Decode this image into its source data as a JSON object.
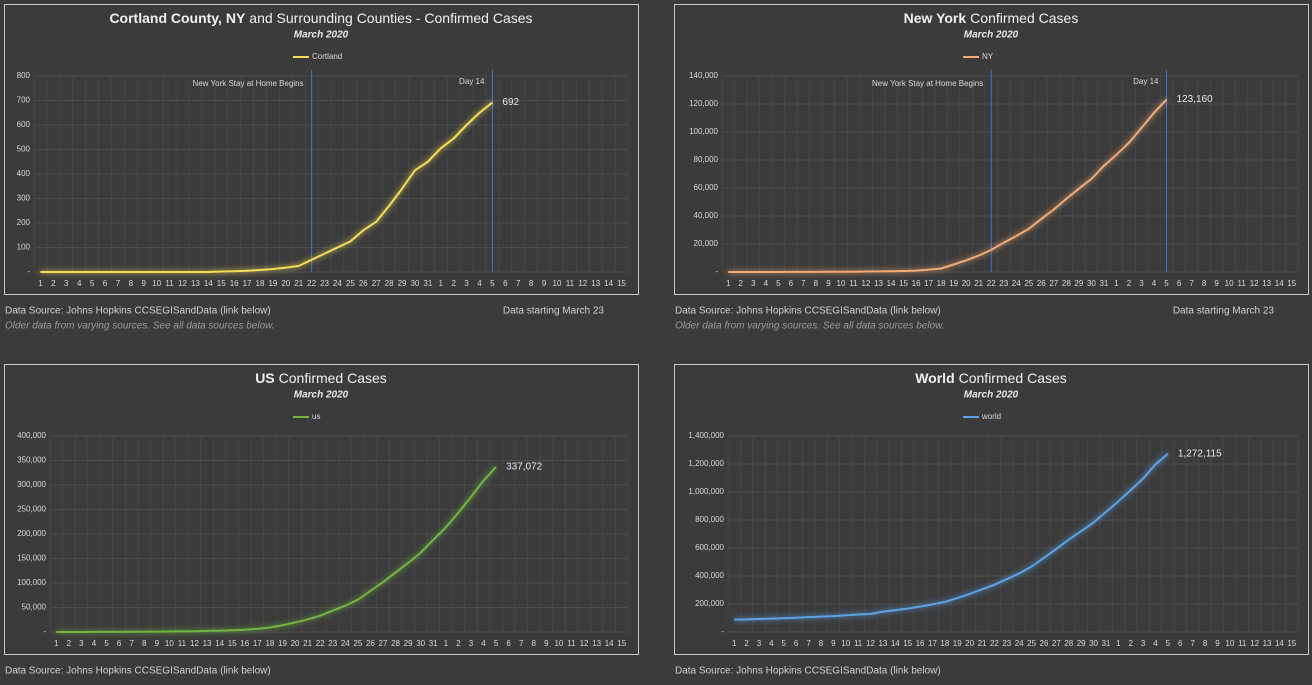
{
  "chart_data": [
    {
      "type": "line",
      "title": [
        "Cortland County, NY",
        "and Surrounding Counties - Confirmed Cases"
      ],
      "subtitle": "March 2020",
      "categories": [
        1,
        2,
        3,
        4,
        5,
        6,
        7,
        8,
        9,
        10,
        11,
        12,
        13,
        14,
        15,
        16,
        17,
        18,
        19,
        20,
        21,
        22,
        23,
        24,
        25,
        26,
        27,
        28,
        29,
        30,
        31,
        1,
        2,
        3,
        4,
        5,
        6,
        7,
        8,
        9,
        10,
        11,
        12,
        13,
        14,
        15
      ],
      "series": [
        {
          "name": "Cortland",
          "color": "#f2dc5a",
          "values": [
            0,
            0,
            0,
            0,
            0,
            0,
            0,
            0,
            0,
            0,
            0,
            0,
            0,
            0,
            2,
            3,
            5,
            8,
            12,
            18,
            25,
            50,
            75,
            100,
            125,
            170,
            205,
            270,
            340,
            415,
            450,
            505,
            545,
            600,
            650,
            692,
            null,
            null,
            null,
            null,
            null,
            null,
            null,
            null,
            null,
            null
          ],
          "value_labels": [
            null,
            null,
            null,
            null,
            null,
            null,
            null,
            null,
            null,
            null,
            null,
            null,
            null,
            null,
            null,
            null,
            null,
            null,
            null,
            null,
            null,
            null,
            null,
            null,
            null,
            null,
            null,
            null,
            null,
            null,
            null,
            null,
            null,
            null,
            null,
            "692",
            null,
            null,
            null,
            null,
            null,
            null,
            null,
            null,
            null,
            null
          ]
        }
      ],
      "ylim": [
        0,
        800
      ],
      "yticks": [
        {
          "value": 0,
          "label": "-"
        },
        100,
        200,
        300,
        400,
        500,
        600,
        700,
        800
      ],
      "grid": true,
      "annotations": [
        {
          "text": "New York Stay at Home Begins",
          "at": 21
        },
        {
          "text": "Day 14",
          "at": 35
        }
      ],
      "source": "Data Source:  Johns Hopkins CCSEGISandData (link below)",
      "source_note": "Older data from varying sources.  See all data sources below.",
      "data_note": "Data starting March 23"
    },
    {
      "type": "line",
      "title": [
        "New York",
        "Confirmed Cases"
      ],
      "subtitle": "March 2020",
      "categories": [
        1,
        2,
        3,
        4,
        5,
        6,
        7,
        8,
        9,
        10,
        11,
        12,
        13,
        14,
        15,
        16,
        17,
        18,
        19,
        20,
        21,
        22,
        23,
        24,
        25,
        26,
        27,
        28,
        29,
        30,
        31,
        1,
        2,
        3,
        4,
        5,
        6,
        7,
        8,
        9,
        10,
        11,
        12,
        13,
        14,
        15
      ],
      "series": [
        {
          "name": "NY",
          "color": "#f0aa78",
          "values": [
            0,
            0,
            10,
            20,
            30,
            50,
            80,
            100,
            140,
            173,
            220,
            328,
            421,
            525,
            732,
            967,
            1706,
            2495,
            5365,
            8310,
            11710,
            15793,
            20884,
            25681,
            30841,
            37877,
            44635,
            52318,
            59513,
            66497,
            75795,
            83712,
            92381,
            102863,
            113704,
            123160,
            null,
            null,
            null,
            null,
            null,
            null,
            null,
            null,
            null,
            null
          ],
          "value_labels": [
            null,
            null,
            null,
            null,
            null,
            null,
            null,
            null,
            null,
            null,
            null,
            null,
            null,
            null,
            null,
            null,
            null,
            null,
            null,
            null,
            null,
            null,
            null,
            null,
            null,
            null,
            null,
            null,
            null,
            null,
            null,
            null,
            null,
            null,
            null,
            "123,160",
            null,
            null,
            null,
            null,
            null,
            null,
            null,
            null,
            null,
            null
          ]
        }
      ],
      "ylim": [
        0,
        140000
      ],
      "yticks": [
        {
          "value": 0,
          "label": "-"
        },
        {
          "value": 20000,
          "label": "20,000"
        },
        {
          "value": 40000,
          "label": "40,000"
        },
        {
          "value": 60000,
          "label": "60,000"
        },
        {
          "value": 80000,
          "label": "80,000"
        },
        {
          "value": 100000,
          "label": "100,000"
        },
        {
          "value": 120000,
          "label": "120,000"
        },
        {
          "value": 140000,
          "label": "140,000"
        }
      ],
      "grid": true,
      "annotations": [
        {
          "text": "New York Stay at Home Begins",
          "at": 21
        },
        {
          "text": "Day 14",
          "at": 35
        }
      ],
      "source": "Data Source:  Johns Hopkins CCSEGISandData (link below)",
      "source_note": "Older data from varying sources.  See all data sources below.",
      "data_note": "Data starting March 23"
    },
    {
      "type": "line",
      "title": [
        "US",
        "Confirmed Cases"
      ],
      "subtitle": "March 2020",
      "categories": [
        1,
        2,
        3,
        4,
        5,
        6,
        7,
        8,
        9,
        10,
        11,
        12,
        13,
        14,
        15,
        16,
        17,
        18,
        19,
        20,
        21,
        22,
        23,
        24,
        25,
        26,
        27,
        28,
        29,
        30,
        31,
        1,
        2,
        3,
        4,
        5,
        6,
        7,
        8,
        9,
        10,
        11,
        12,
        13,
        14,
        15
      ],
      "series": [
        {
          "name": "us",
          "color": "#72b442",
          "values": [
            75,
            100,
            124,
            158,
            221,
            319,
            435,
            541,
            704,
            994,
            1301,
            1630,
            2183,
            2770,
            3613,
            4596,
            6344,
            9197,
            13779,
            19273,
            25600,
            33276,
            43847,
            53740,
            65778,
            83836,
            101657,
            121478,
            140886,
            161807,
            188172,
            213372,
            243453,
            275586,
            308850,
            337072,
            null,
            null,
            null,
            null,
            null,
            null,
            null,
            null,
            null,
            null
          ],
          "value_labels": [
            null,
            null,
            null,
            null,
            null,
            null,
            null,
            null,
            null,
            null,
            null,
            null,
            null,
            null,
            null,
            null,
            null,
            null,
            null,
            null,
            null,
            null,
            null,
            null,
            null,
            null,
            null,
            null,
            null,
            null,
            null,
            null,
            null,
            null,
            null,
            "337,072",
            null,
            null,
            null,
            null,
            null,
            null,
            null,
            null,
            null,
            null
          ]
        }
      ],
      "ylim": [
        0,
        400000
      ],
      "yticks": [
        {
          "value": 0,
          "label": "-"
        },
        {
          "value": 50000,
          "label": "50,000"
        },
        {
          "value": 100000,
          "label": "100,000"
        },
        {
          "value": 150000,
          "label": "150,000"
        },
        {
          "value": 200000,
          "label": "200,000"
        },
        {
          "value": 250000,
          "label": "250,000"
        },
        {
          "value": 300000,
          "label": "300,000"
        },
        {
          "value": 350000,
          "label": "350,000"
        },
        {
          "value": 400000,
          "label": "400,000"
        }
      ],
      "grid": true,
      "source": "Data Source:  Johns Hopkins CCSEGISandData (link below)"
    },
    {
      "type": "line",
      "title": [
        "World",
        "Confirmed Cases"
      ],
      "subtitle": "March 2020",
      "categories": [
        1,
        2,
        3,
        4,
        5,
        6,
        7,
        8,
        9,
        10,
        11,
        12,
        13,
        14,
        15,
        16,
        17,
        18,
        19,
        20,
        21,
        22,
        23,
        24,
        25,
        26,
        27,
        28,
        29,
        30,
        31,
        1,
        2,
        3,
        4,
        5,
        6,
        7,
        8,
        9,
        10,
        11,
        12,
        13,
        14,
        15
      ],
      "series": [
        {
          "name": "world",
          "color": "#5ba3e6",
          "values": [
            88369,
            90306,
            92840,
            95120,
            97886,
            101801,
            105847,
            109821,
            113590,
            118620,
            125875,
            128352,
            145205,
            156101,
            167454,
            181574,
            197102,
            214821,
            242570,
            272208,
            304507,
            336953,
            378235,
            418045,
            467653,
            529591,
            593291,
            660706,
            720117,
            782365,
            857487,
            932605,
            1013157,
            1095917,
            1197405,
            1272115,
            null,
            null,
            null,
            null,
            null,
            null,
            null,
            null,
            null,
            null
          ],
          "value_labels": [
            null,
            null,
            null,
            null,
            null,
            null,
            null,
            null,
            null,
            null,
            null,
            null,
            null,
            null,
            null,
            null,
            null,
            null,
            null,
            null,
            null,
            null,
            null,
            null,
            null,
            null,
            null,
            null,
            null,
            null,
            null,
            null,
            null,
            null,
            null,
            "1,272,115",
            null,
            null,
            null,
            null,
            null,
            null,
            null,
            null,
            null,
            null
          ]
        }
      ],
      "ylim": [
        0,
        1400000
      ],
      "yticks": [
        {
          "value": 0,
          "label": "-"
        },
        {
          "value": 200000,
          "label": "200,000"
        },
        {
          "value": 400000,
          "label": "400,000"
        },
        {
          "value": 600000,
          "label": "600,000"
        },
        {
          "value": 800000,
          "label": "800,000"
        },
        {
          "value": 1000000,
          "label": "1,000,000"
        },
        {
          "value": 1200000,
          "label": "1,200,000"
        },
        {
          "value": 1400000,
          "label": "1,400,000"
        }
      ],
      "grid": true,
      "source": "Data Source:  Johns Hopkins CCSEGISandData (link below)"
    }
  ]
}
